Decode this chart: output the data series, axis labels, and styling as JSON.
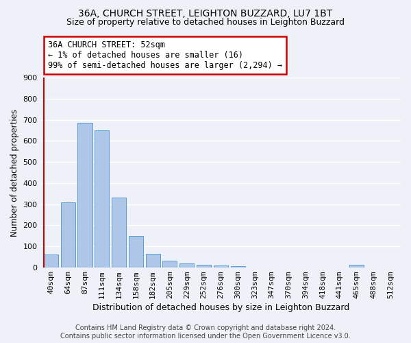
{
  "title_line1": "36A, CHURCH STREET, LEIGHTON BUZZARD, LU7 1BT",
  "title_line2": "Size of property relative to detached houses in Leighton Buzzard",
  "xlabel": "Distribution of detached houses by size in Leighton Buzzard",
  "ylabel": "Number of detached properties",
  "bar_labels": [
    "40sqm",
    "64sqm",
    "87sqm",
    "111sqm",
    "134sqm",
    "158sqm",
    "182sqm",
    "205sqm",
    "229sqm",
    "252sqm",
    "276sqm",
    "300sqm",
    "323sqm",
    "347sqm",
    "370sqm",
    "394sqm",
    "418sqm",
    "441sqm",
    "465sqm",
    "488sqm",
    "512sqm"
  ],
  "bar_values": [
    60,
    310,
    685,
    650,
    330,
    150,
    63,
    30,
    17,
    11,
    10,
    7,
    0,
    0,
    0,
    0,
    0,
    0,
    13,
    0,
    0
  ],
  "bar_color": "#aec6e8",
  "bar_edge_color": "#5a9fd4",
  "highlight_bar_edge_color": "#cc0000",
  "annotation_text": "36A CHURCH STREET: 52sqm\n← 1% of detached houses are smaller (16)\n99% of semi-detached houses are larger (2,294) →",
  "annotation_box_color": "#ffffff",
  "annotation_box_edge_color": "#cc0000",
  "ylim": [
    0,
    900
  ],
  "yticks": [
    0,
    100,
    200,
    300,
    400,
    500,
    600,
    700,
    800,
    900
  ],
  "footer_line1": "Contains HM Land Registry data © Crown copyright and database right 2024.",
  "footer_line2": "Contains public sector information licensed under the Open Government Licence v3.0.",
  "background_color": "#eef2f8",
  "grid_color": "#ffffff",
  "title_fontsize": 10,
  "subtitle_fontsize": 9,
  "ylabel_fontsize": 8.5,
  "xlabel_fontsize": 9,
  "tick_fontsize": 8,
  "footer_fontsize": 7
}
